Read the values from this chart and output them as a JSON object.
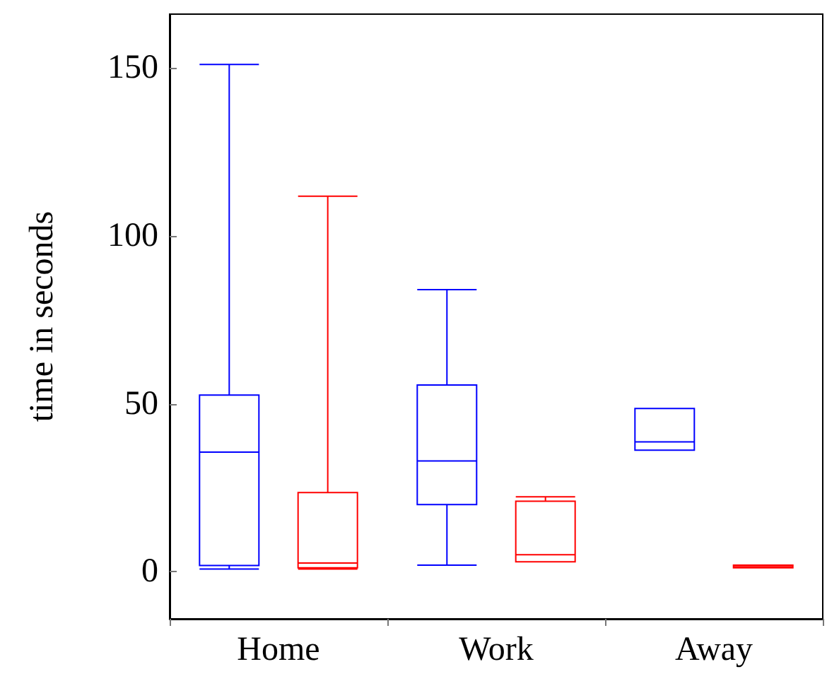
{
  "chart_data": {
    "type": "box",
    "ylabel": "time in seconds",
    "categories": [
      "Home",
      "Work",
      "Away"
    ],
    "ylim": [
      -14,
      166
    ],
    "yticks": [
      0,
      50,
      100,
      150
    ],
    "series": [
      {
        "color": "#0000ff",
        "boxes": [
          {
            "low": 0.8,
            "q1": 1.9,
            "median": 35.6,
            "q3": 52.6,
            "high": 151
          },
          {
            "low": 2,
            "q1": 20,
            "median": 33,
            "q3": 55.6,
            "high": 84
          },
          {
            "low": 36.2,
            "q1": 36.2,
            "median": 38.7,
            "q3": 48.6,
            "high": 48.6
          }
        ]
      },
      {
        "color": "#ff0000",
        "boxes": [
          {
            "low": 0.8,
            "q1": 1.2,
            "median": 2.6,
            "q3": 23.6,
            "high": 111.8
          },
          {
            "low": 3,
            "q1": 3,
            "median": 5.1,
            "q3": 21,
            "high": 22.3
          },
          {
            "low": 1.2,
            "q1": 1.2,
            "median": 1.5,
            "q3": 2,
            "high": 2
          }
        ]
      }
    ]
  }
}
